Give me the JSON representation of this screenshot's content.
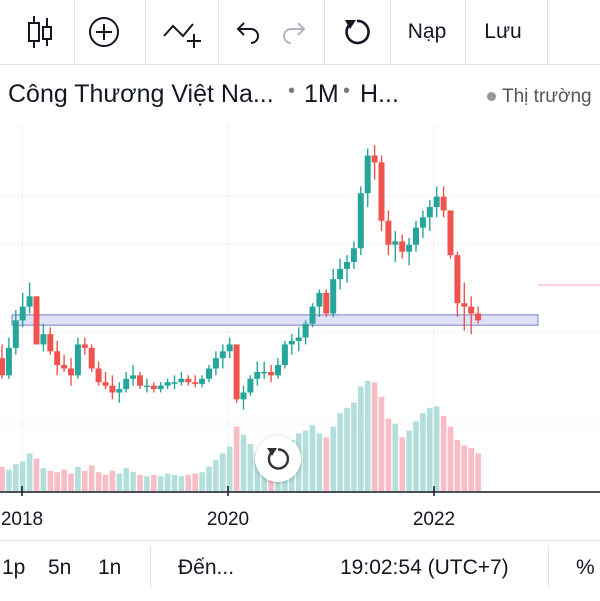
{
  "toolbar": {
    "items": [
      {
        "icon": "candlestick-icon"
      },
      {
        "icon": "plus-circle-icon"
      },
      {
        "icon": "indicator-add-icon"
      },
      {
        "icon": "undo-icon"
      },
      {
        "icon": "redo-icon"
      },
      {
        "icon": "refresh-icon"
      }
    ],
    "load_label": "Nạp",
    "save_label": "Lưu"
  },
  "legend": {
    "symbol": "Công Thương Việt Na...",
    "dot": "•",
    "interval": "1M",
    "chart_type": "H...",
    "market_status": "Thị trường"
  },
  "bottom": {
    "ranges": [
      "1p",
      "5n",
      "1n"
    ],
    "goto_label": "Đến...",
    "time": "19:02:54 (UTC+7)",
    "percent_label": "%"
  },
  "colors": {
    "up": "#26a69a",
    "down": "#ef5350",
    "up_volume": "#b2dfdb",
    "down_volume": "#f7bcc4",
    "zone_fill": "#d8dcf6",
    "zone_stroke": "#7a7ec2"
  },
  "chart_data": {
    "type": "candlestick",
    "x_tick_labels": [
      "2018",
      "2020",
      "2022"
    ],
    "highlight_zone": {
      "low": 27.6,
      "high": 30.6
    },
    "candles": [
      [
        18.0,
        22.0,
        12.0,
        13.0
      ],
      [
        13.0,
        24.0,
        12.0,
        21.0
      ],
      [
        21.0,
        32.0,
        19.0,
        29.0
      ],
      [
        29.0,
        37.0,
        27.0,
        33.0
      ],
      [
        33.0,
        40.0,
        31.0,
        36.0
      ],
      [
        36.0,
        36.0,
        22.0,
        22.0
      ],
      [
        22.0,
        28.0,
        20.0,
        25.0
      ],
      [
        25.0,
        27.0,
        19.0,
        20.0
      ],
      [
        20.0,
        23.0,
        13.0,
        16.0
      ],
      [
        16.0,
        19.0,
        14.0,
        15.0
      ],
      [
        15.0,
        18.0,
        10.0,
        13.0
      ],
      [
        13.0,
        24.0,
        12.0,
        22.0
      ],
      [
        22.0,
        24.0,
        19.0,
        21.0
      ],
      [
        21.0,
        22.0,
        14.0,
        15.0
      ],
      [
        15.0,
        17.0,
        10.0,
        11.0
      ],
      [
        11.0,
        14.0,
        9.0,
        10.0
      ],
      [
        10.0,
        13.0,
        6.0,
        8.0
      ],
      [
        8.0,
        11.0,
        5.0,
        9.0
      ],
      [
        9.0,
        14.0,
        8.0,
        12.0
      ],
      [
        12.0,
        16.0,
        10.0,
        13.0
      ],
      [
        13.0,
        14.0,
        9.0,
        10.0
      ],
      [
        10.0,
        12.0,
        8.0,
        10.0
      ],
      [
        10.0,
        11.0,
        8.0,
        9.0
      ],
      [
        9.0,
        11.0,
        8.0,
        10.0
      ],
      [
        10.0,
        12.0,
        9.0,
        11.0
      ],
      [
        11.0,
        13.0,
        9.0,
        11.0
      ],
      [
        11.0,
        14.0,
        10.0,
        12.0
      ],
      [
        12.0,
        13.0,
        10.0,
        11.0
      ],
      [
        11.0,
        13.0,
        9.5,
        10.5
      ],
      [
        10.5,
        13.0,
        9.5,
        12.0
      ],
      [
        12.0,
        16.0,
        11.0,
        15.0
      ],
      [
        15.0,
        20.0,
        13.0,
        18.0
      ],
      [
        18.0,
        22.0,
        15.0,
        20.0
      ],
      [
        20.0,
        24.0,
        18.0,
        22.0
      ],
      [
        22.0,
        22.0,
        5.0,
        6.0
      ],
      [
        6.0,
        10.0,
        3.0,
        8.0
      ],
      [
        8.0,
        13.0,
        7.0,
        12.0
      ],
      [
        12.0,
        17.0,
        10.0,
        14.0
      ],
      [
        14.0,
        17.0,
        12.0,
        14.0
      ],
      [
        14.0,
        16.0,
        11.0,
        13.0
      ],
      [
        13.0,
        18.0,
        12.0,
        16.0
      ],
      [
        16.0,
        23.0,
        15.0,
        22.0
      ],
      [
        22.0,
        25.0,
        19.0,
        23.0
      ],
      [
        23.0,
        27.0,
        20.0,
        24.0
      ],
      [
        24.0,
        29.0,
        22.0,
        28.0
      ],
      [
        28.0,
        34.0,
        27.0,
        33.0
      ],
      [
        33.0,
        38.0,
        30.0,
        37.0
      ],
      [
        37.0,
        38.0,
        30.0,
        31.0
      ],
      [
        31.0,
        44.0,
        30.0,
        41.0
      ],
      [
        41.0,
        47.0,
        38.0,
        44.0
      ],
      [
        44.0,
        48.0,
        40.0,
        46.0
      ],
      [
        46.0,
        52.0,
        44.0,
        50.0
      ],
      [
        50.0,
        68.0,
        48.0,
        66.0
      ],
      [
        66.0,
        79.0,
        62.0,
        77.0
      ],
      [
        77.0,
        80.0,
        70.0,
        75.0
      ],
      [
        75.0,
        77.0,
        55.0,
        58.0
      ],
      [
        58.0,
        61.0,
        48.0,
        51.0
      ],
      [
        51.0,
        55.0,
        46.0,
        52.0
      ],
      [
        52.0,
        54.0,
        47.0,
        49.0
      ],
      [
        49.0,
        53.0,
        45.0,
        51.0
      ],
      [
        51.0,
        58.0,
        49.0,
        56.0
      ],
      [
        56.0,
        61.0,
        53.0,
        59.0
      ],
      [
        59.0,
        64.0,
        55.0,
        62.0
      ],
      [
        62.0,
        68.0,
        59.0,
        65.0
      ],
      [
        65.0,
        68.0,
        59.0,
        61.0
      ],
      [
        61.0,
        61.0,
        47.0,
        48.0
      ],
      [
        48.0,
        49.0,
        30.0,
        34.0
      ],
      [
        34.0,
        40.0,
        26.0,
        33.0
      ],
      [
        33.0,
        36.0,
        25.0,
        31.0
      ],
      [
        31.0,
        33.0,
        28.0,
        29.0
      ]
    ],
    "volumes": [
      18,
      16,
      20,
      22,
      28,
      24,
      17,
      15,
      14,
      16,
      13,
      18,
      15,
      19,
      14,
      12,
      15,
      13,
      17,
      14,
      12,
      11,
      12,
      11,
      13,
      12,
      11,
      12,
      13,
      14,
      18,
      23,
      28,
      33,
      48,
      42,
      35,
      28,
      26,
      25,
      27,
      33,
      38,
      43,
      45,
      49,
      43,
      40,
      48,
      58,
      62,
      66,
      78,
      82,
      81,
      70,
      54,
      50,
      40,
      45,
      52,
      58,
      62,
      63,
      56,
      48,
      38,
      34,
      32,
      28
    ],
    "ylim": [
      0,
      85
    ]
  }
}
